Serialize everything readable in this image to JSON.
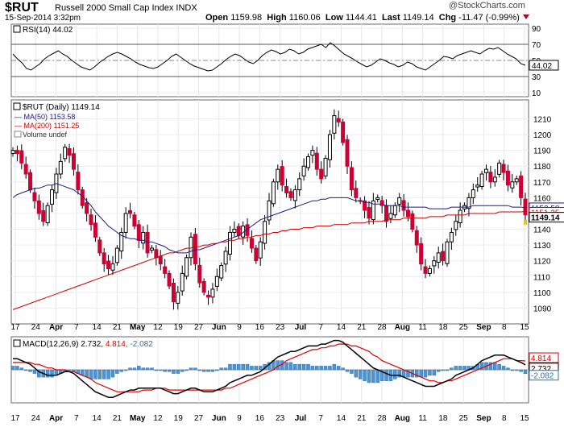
{
  "header": {
    "ticker": "$RUT",
    "name": "Russell 2000 Small Cap Index INDX",
    "date": "15-Sep-2014 3:32pm",
    "watermark": "@StockCharts.com",
    "open_label": "Open",
    "open": "1159.98",
    "high_label": "High",
    "high": "1160.06",
    "low_label": "Low",
    "low": "1144.41",
    "last_label": "Last",
    "last": "1149.14",
    "chg_label": "Chg",
    "chg": "-11.47 (-0.99%)"
  },
  "colors": {
    "up": "#000000",
    "down": "#cc0033",
    "ma50": "#1a1a8c",
    "ma200": "#cc0000",
    "hist": "#4d94d4",
    "volume": "#888888"
  },
  "x_axis": {
    "labels": [
      "17",
      "24",
      "Apr",
      "7",
      "14",
      "21",
      "May",
      "12",
      "19",
      "27",
      "Jun",
      "9",
      "16",
      "23",
      "Jul",
      "7",
      "14",
      "21",
      "28",
      "Aug",
      "11",
      "18",
      "25",
      "Sep",
      "8",
      "15"
    ],
    "major": [
      "Apr",
      "May",
      "Jun",
      "Jul",
      "Aug",
      "Sep"
    ]
  },
  "chart_data": [
    {
      "type": "line",
      "title": "RSI(14) 44.02",
      "series": [
        {
          "name": "RSI(14)",
          "values": [
            58,
            52,
            47,
            40,
            38,
            42,
            46,
            52,
            56,
            59,
            62,
            58,
            55,
            50,
            46,
            42,
            40,
            38,
            42,
            47,
            51,
            55,
            58,
            60,
            58,
            55,
            52,
            48,
            45,
            43,
            41,
            40,
            42,
            46,
            50,
            55,
            58,
            54,
            50,
            46,
            43,
            41,
            39,
            37,
            38,
            42,
            46,
            51,
            55,
            58,
            56,
            52,
            48,
            46,
            50,
            56,
            60,
            63,
            61,
            58,
            60,
            64,
            62,
            58,
            60,
            64,
            66,
            68,
            70,
            66,
            72,
            68,
            63,
            58,
            55,
            52,
            48,
            45,
            42,
            44,
            48,
            52,
            50,
            47,
            45,
            42,
            44,
            48,
            46,
            42,
            40,
            38,
            42,
            46,
            50,
            55,
            54,
            52,
            56,
            58,
            60,
            62,
            60,
            58,
            62,
            65,
            64,
            66,
            62,
            58,
            55,
            52,
            46,
            44.02
          ]
        }
      ],
      "ylim": [
        5,
        95
      ],
      "yticks": [
        10,
        30,
        50,
        70,
        90
      ],
      "reference_lines": [
        30,
        70
      ],
      "value_label": "44.02"
    },
    {
      "type": "candlestick",
      "title": "$RUT (Daily) 1149.14",
      "legend": [
        "MA(50) 1153.58",
        "MA(200) 1151.25",
        "Volume undef"
      ],
      "yticks": [
        1090,
        1100,
        1110,
        1120,
        1130,
        1140,
        1150,
        1160,
        1170,
        1180,
        1190,
        1200,
        1210
      ],
      "ylim": [
        1080,
        1222
      ],
      "close": [
        1190,
        1188,
        1182,
        1175,
        1165,
        1158,
        1150,
        1145,
        1155,
        1165,
        1175,
        1183,
        1192,
        1187,
        1178,
        1165,
        1155,
        1150,
        1143,
        1135,
        1125,
        1118,
        1115,
        1118,
        1128,
        1138,
        1150,
        1150,
        1142,
        1133,
        1138,
        1125,
        1128,
        1122,
        1118,
        1112,
        1104,
        1094,
        1100,
        1112,
        1122,
        1135,
        1118,
        1106,
        1100,
        1097,
        1102,
        1110,
        1117,
        1126,
        1138,
        1140,
        1136,
        1142,
        1136,
        1128,
        1120,
        1132,
        1145,
        1158,
        1170,
        1178,
        1168,
        1163,
        1160,
        1165,
        1172,
        1180,
        1186,
        1190,
        1178,
        1172,
        1185,
        1200,
        1212,
        1208,
        1195,
        1180,
        1165,
        1160,
        1158,
        1152,
        1147,
        1158,
        1160,
        1155,
        1145,
        1150,
        1155,
        1160,
        1152,
        1148,
        1140,
        1130,
        1118,
        1112,
        1115,
        1120,
        1125,
        1120,
        1132,
        1138,
        1145,
        1152,
        1155,
        1160,
        1165,
        1168,
        1175,
        1178,
        1170,
        1173,
        1182,
        1176,
        1168,
        1170,
        1172,
        1160,
        1149.14
      ],
      "ma50": [
        1160,
        1162,
        1163,
        1164,
        1165,
        1166,
        1166,
        1167,
        1168,
        1168,
        1169,
        1168,
        1167,
        1166,
        1165,
        1163,
        1161,
        1158,
        1155,
        1151,
        1148,
        1145,
        1142,
        1140,
        1138,
        1136,
        1135,
        1134,
        1134,
        1133,
        1133,
        1132,
        1132,
        1131,
        1130,
        1129,
        1127,
        1126,
        1125,
        1125,
        1125,
        1126,
        1127,
        1127,
        1128,
        1129,
        1130,
        1131,
        1132,
        1133,
        1134,
        1135,
        1136,
        1138,
        1140,
        1142,
        1144,
        1146,
        1147,
        1148,
        1149,
        1150,
        1151,
        1152,
        1153,
        1154,
        1155,
        1156,
        1157,
        1158,
        1158,
        1159,
        1159,
        1160,
        1160,
        1160,
        1160,
        1160,
        1159,
        1158,
        1158,
        1157,
        1157,
        1156,
        1156,
        1156,
        1155,
        1155,
        1155,
        1155,
        1154,
        1154,
        1154,
        1154,
        1154,
        1154,
        1153,
        1153,
        1153,
        1153,
        1153,
        1154,
        1154,
        1154,
        1154,
        1154,
        1155,
        1155,
        1155,
        1155,
        1155,
        1155,
        1155,
        1155,
        1155,
        1154,
        1154,
        1154,
        1153.58
      ],
      "ma200": [
        1089,
        1090,
        1091,
        1092,
        1093,
        1094,
        1095,
        1096,
        1097,
        1098,
        1099,
        1100,
        1101,
        1102,
        1103,
        1104,
        1105,
        1106,
        1107,
        1108,
        1109,
        1110,
        1111,
        1112,
        1113,
        1114,
        1115,
        1116,
        1117,
        1118,
        1119,
        1120,
        1121,
        1122,
        1123,
        1124,
        1125,
        1125,
        1126,
        1127,
        1128,
        1128,
        1129,
        1129,
        1130,
        1130,
        1131,
        1131,
        1132,
        1132,
        1133,
        1133,
        1134,
        1134,
        1135,
        1135,
        1136,
        1136,
        1137,
        1137,
        1138,
        1138,
        1139,
        1139,
        1140,
        1140,
        1140,
        1141,
        1141,
        1141,
        1142,
        1142,
        1142,
        1142,
        1143,
        1143,
        1143,
        1143,
        1144,
        1144,
        1144,
        1144,
        1145,
        1145,
        1145,
        1145,
        1146,
        1146,
        1146,
        1146,
        1147,
        1147,
        1147,
        1147,
        1147,
        1147,
        1148,
        1148,
        1148,
        1148,
        1149,
        1149,
        1149,
        1149,
        1149,
        1150,
        1150,
        1150,
        1150,
        1150,
        1150,
        1150,
        1151,
        1151,
        1151,
        1151,
        1151,
        1151,
        1151.25
      ],
      "price_labels": [
        "1153.58",
        "1151.25",
        "1149.14"
      ]
    },
    {
      "type": "line",
      "title": "MACD(12,26,9) 2.732, 4.814, -2.082",
      "macd_label": "MACD(12,26,9)",
      "macd_value": "2.732,",
      "signal_value": "4.814,",
      "hist_value": "-2.082",
      "macd": [
        6,
        6,
        5,
        4,
        3,
        1,
        -1,
        -2,
        -3,
        -3,
        -3,
        -2,
        -1,
        -1,
        -2,
        -4,
        -6,
        -8,
        -10,
        -12,
        -13,
        -14,
        -15,
        -15,
        -14,
        -13,
        -12,
        -11,
        -11,
        -10,
        -10,
        -10,
        -10,
        -10,
        -10,
        -11,
        -12,
        -13,
        -13,
        -12,
        -11,
        -10,
        -10,
        -11,
        -12,
        -12,
        -12,
        -11,
        -10,
        -9,
        -7,
        -6,
        -5,
        -4,
        -3,
        -3,
        -2,
        -1,
        1,
        3,
        5,
        7,
        8,
        9,
        10,
        10,
        11,
        12,
        13,
        13,
        13,
        14,
        14,
        15,
        16,
        16,
        15,
        13,
        11,
        9,
        7,
        5,
        3,
        1,
        0,
        -1,
        -2,
        -3,
        -3,
        -3,
        -4,
        -5,
        -6,
        -7,
        -8,
        -9,
        -9,
        -9,
        -8,
        -7,
        -6,
        -5,
        -3,
        -2,
        -1,
        0,
        1,
        3,
        5,
        6,
        7,
        8,
        8,
        8,
        7,
        6,
        5,
        4,
        2.732
      ],
      "signal": [
        4,
        4,
        4,
        4,
        4,
        3,
        3,
        2,
        1,
        1,
        0,
        0,
        0,
        -1,
        -1,
        -2,
        -3,
        -4,
        -5,
        -7,
        -8,
        -9,
        -10,
        -11,
        -12,
        -12,
        -12,
        -12,
        -12,
        -12,
        -11,
        -11,
        -11,
        -10,
        -10,
        -10,
        -11,
        -11,
        -11,
        -11,
        -11,
        -11,
        -11,
        -11,
        -11,
        -11,
        -11,
        -11,
        -11,
        -10,
        -10,
        -9,
        -8,
        -7,
        -6,
        -5,
        -4,
        -3,
        -2,
        -1,
        0,
        2,
        3,
        5,
        6,
        7,
        8,
        9,
        10,
        11,
        11,
        12,
        12,
        13,
        13,
        14,
        14,
        14,
        13,
        13,
        12,
        11,
        10,
        8,
        7,
        5,
        4,
        3,
        2,
        1,
        0,
        -1,
        -2,
        -3,
        -4,
        -5,
        -6,
        -6,
        -7,
        -7,
        -6,
        -6,
        -5,
        -4,
        -3,
        -2,
        -1,
        0,
        1,
        2,
        3,
        4,
        5,
        6,
        6,
        6,
        5,
        5,
        4.814
      ],
      "yticks_labels": [
        "4.814",
        "2.732",
        "-2.082"
      ],
      "ylim": [
        -18,
        18
      ]
    }
  ]
}
